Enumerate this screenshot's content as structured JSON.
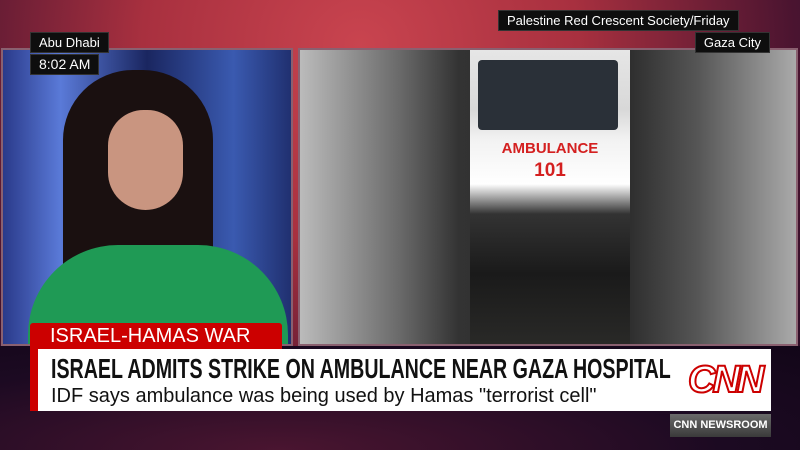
{
  "location": {
    "city": "Abu Dhabi",
    "time": "8:02 AM"
  },
  "video_credit": {
    "source": "Palestine Red Crescent Society/Friday",
    "location": "Gaza City"
  },
  "video": {
    "ambulance_label": "AMBULANCE",
    "ambulance_number": "101"
  },
  "chyron": {
    "topic": "ISRAEL-HAMAS WAR",
    "headline": "ISRAEL ADMITS STRIKE ON AMBULANCE NEAR GAZA HOSPITAL",
    "subheadline": "IDF says ambulance was being used by Hamas \"terrorist cell\""
  },
  "network": {
    "logo": "CNN",
    "show": "CNN NEWSROOM"
  },
  "colors": {
    "brand_red": "#cc0000"
  }
}
